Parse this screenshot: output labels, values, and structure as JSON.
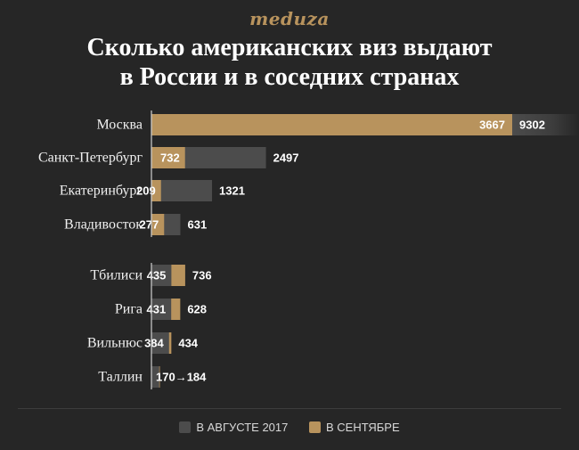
{
  "logo": "meduza",
  "title_line1": "Сколько американских виз выдают",
  "title_line2": "в России и в соседних странах",
  "colors": {
    "august": "#4c4c4c",
    "september": "#b8935d",
    "background": "#262626"
  },
  "chart_data": {
    "type": "bar",
    "orientation": "horizontal",
    "categories": [
      "Москва",
      "Санкт-Петербург",
      "Екатеринбург",
      "Владивосток",
      "Тбилиси",
      "Рига",
      "Вильнюс",
      "Таллин"
    ],
    "series": [
      {
        "name": "В АВГУСТЕ 2017",
        "values": [
          9302,
          2497,
          1321,
          631,
          435,
          431,
          384,
          170
        ]
      },
      {
        "name": "В СЕНТЯБРЕ",
        "values": [
          3667,
          732,
          209,
          277,
          736,
          628,
          434,
          184
        ]
      }
    ],
    "groups": [
      [
        "Москва",
        "Санкт-Петербург",
        "Екатеринбург",
        "Владивосток"
      ],
      [
        "Тбилиси",
        "Рига",
        "Вильнюс",
        "Таллин"
      ]
    ],
    "tallinn_label": "170→184",
    "legend_position": "bottom"
  }
}
